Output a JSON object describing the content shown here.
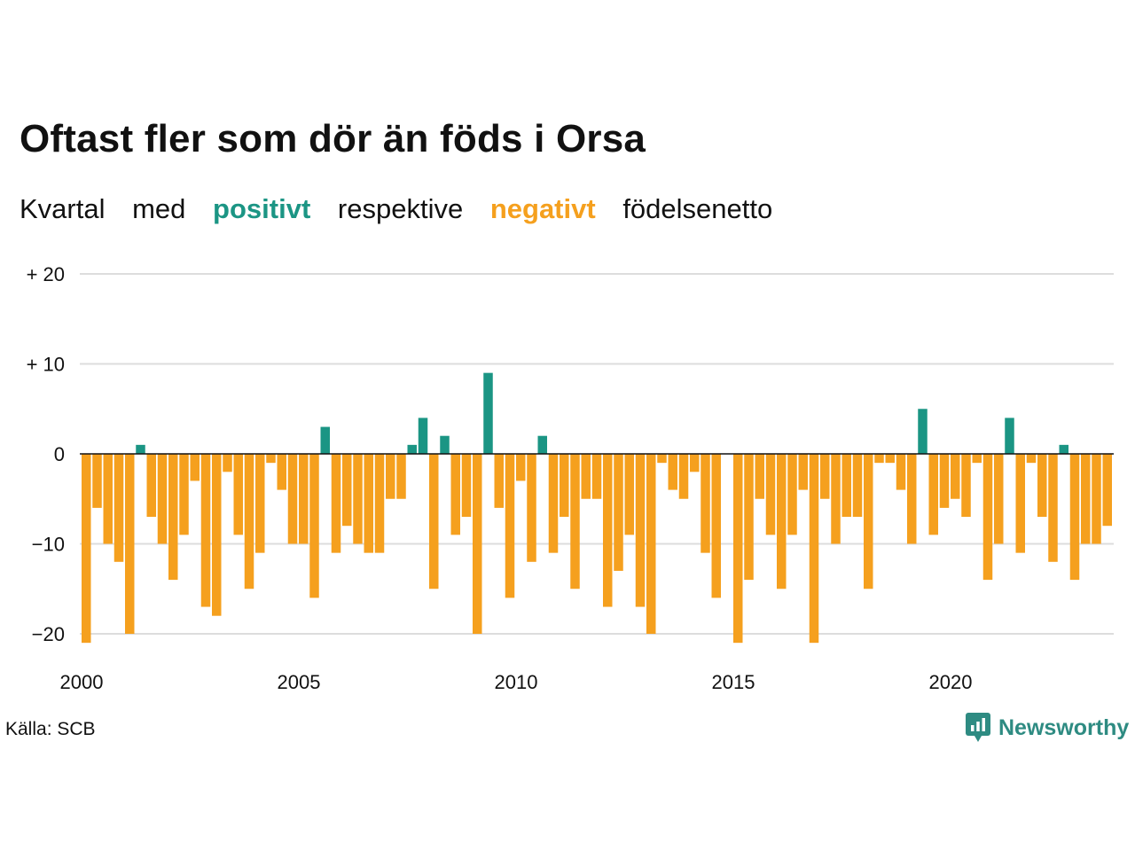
{
  "title": "Oftast fler som dör än föds i Orsa",
  "subtitle": {
    "word1": "Kvartal",
    "word2": "med",
    "positive": "positivt",
    "word3": "respektive",
    "negative": "negativt",
    "word4": "födelsenetto"
  },
  "source": "Källa: SCB",
  "brand": "Newsworthy",
  "colors": {
    "positive": "#1b9584",
    "negative": "#f5a01e",
    "brand": "#2e8b82",
    "grid": "#dddddd"
  },
  "chart_data": {
    "type": "bar",
    "xlabel": "",
    "ylabel": "",
    "ylim": [
      -22,
      20
    ],
    "y_ticks": [
      {
        "value": 20,
        "label": "+ 20"
      },
      {
        "value": 10,
        "label": "+ 10"
      },
      {
        "value": 0,
        "label": "0"
      },
      {
        "value": -10,
        "label": "−10"
      },
      {
        "value": -20,
        "label": "−20"
      }
    ],
    "x_ticks": [
      "2000",
      "2005",
      "2010",
      "2015",
      "2020"
    ],
    "start_year": 2000,
    "series": [
      {
        "values": [
          -21,
          -6,
          -10,
          -12,
          -20,
          1,
          -7,
          -10,
          -14,
          -9,
          -3,
          -17,
          -18,
          -2,
          -9,
          -15,
          -11,
          -1,
          -4,
          -10,
          -10,
          -16,
          3,
          -11,
          -8,
          -10,
          -11,
          -11,
          -5,
          -5,
          1,
          4,
          -15,
          2,
          -9,
          -7,
          -20,
          9,
          -6,
          -16,
          -3,
          -12,
          2,
          -11,
          -7,
          -15,
          -5,
          -5,
          -17,
          -13,
          -9,
          -17,
          -20,
          -1,
          -4,
          -5,
          -2,
          -11,
          -16,
          0,
          -21,
          -14,
          -5,
          -9,
          -15,
          -9,
          -4,
          -21,
          -5,
          -10,
          -7,
          -7,
          -15,
          -1,
          -1,
          -4,
          -10,
          5,
          -9,
          -6,
          -5,
          -7,
          -1,
          -14,
          -10,
          4,
          -11,
          -1,
          -7,
          -12,
          1,
          -14,
          -10,
          -10,
          -8
        ]
      }
    ]
  }
}
